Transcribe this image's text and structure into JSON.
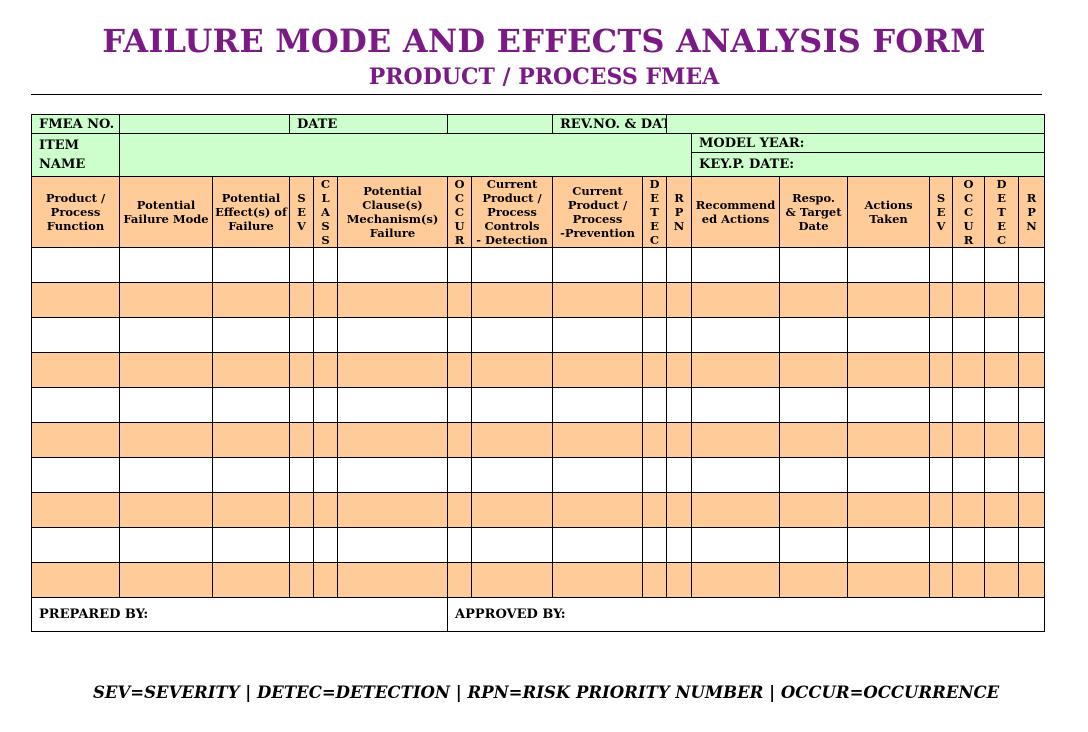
{
  "title": "FAILURE MODE AND EFFECTS ANALYSIS FORM",
  "subtitle": "PRODUCT  / PROCESS FMEA",
  "info": {
    "fmea_no": "FMEA NO.",
    "date": "DATE",
    "rev_no_date": "REV.NO. & DATE",
    "item_line1": "ITEM",
    "item_line2": "NAME",
    "model_year": "MODEL YEAR:",
    "key_p_date": "KEY.P. DATE:"
  },
  "columns": {
    "function": [
      "Product /",
      "Process",
      "Function"
    ],
    "failure_mode": [
      "Potential",
      "Failure Mode"
    ],
    "effects": [
      "Potential",
      "Effect(s) of",
      "Failure"
    ],
    "sev": [
      "S",
      "E",
      "V"
    ],
    "class": [
      "C",
      "L",
      "A",
      "S",
      "S"
    ],
    "cause": [
      "Potential",
      "Clause(s)",
      "Mechanism(s)",
      "Failure"
    ],
    "occur": [
      "O",
      "C",
      "C",
      "U",
      "R"
    ],
    "detection_controls": [
      "Current",
      "Product /",
      "Process",
      "Controls",
      "- Detection"
    ],
    "prevention_controls": [
      "Current",
      "Product /",
      "Process",
      "-Prevention"
    ],
    "detec": [
      "D",
      "E",
      "T",
      "E",
      "C"
    ],
    "rpn": [
      "R",
      "P",
      "N"
    ],
    "recommended": [
      "Recommend",
      "ed Actions"
    ],
    "responsibility": [
      "Respo.",
      "& Target",
      "Date"
    ],
    "actions_taken": [
      "Actions",
      "Taken"
    ],
    "sev2": [
      "S",
      "E",
      "V"
    ],
    "occur2": [
      "O",
      "C",
      "C",
      "U",
      "R"
    ],
    "detec2": [
      "D",
      "E",
      "T",
      "E",
      "C"
    ],
    "rpn2": [
      "R",
      "P",
      "N"
    ]
  },
  "row_colors": [
    "white",
    "orange",
    "white",
    "orange",
    "white",
    "orange",
    "white",
    "orange",
    "white",
    "orange"
  ],
  "footer": {
    "prepared_by": "PREPARED BY:",
    "approved_by": "APPROVED BY:"
  },
  "legend": "SEV=SEVERITY | DETEC=DETECTION | RPN=RISK PRIORITY NUMBER | OCCUR=OCCURRENCE",
  "colors": {
    "title": "#7b1a86",
    "info_background": "#ccffcc",
    "header_background": "#ffcc99",
    "alt_row_background": "#ffcc99"
  }
}
